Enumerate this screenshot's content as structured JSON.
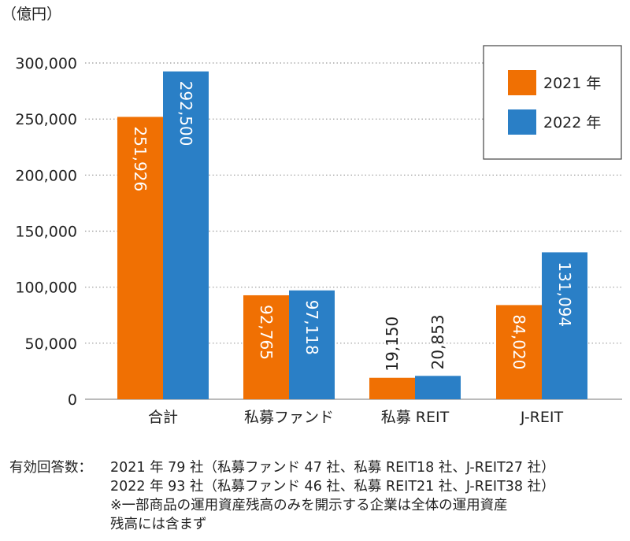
{
  "chart_data": {
    "type": "bar",
    "unit_label": "（億円）",
    "categories": [
      "合計",
      "私募ファンド",
      "私募 REIT",
      "J-REIT"
    ],
    "series": [
      {
        "name": "2021 年",
        "color": "#f07003",
        "values": [
          251926,
          92765,
          19150,
          84020
        ],
        "labels": [
          "251,926",
          "92,765",
          "19,150",
          "84,020"
        ]
      },
      {
        "name": "2022 年",
        "color": "#2a7fc6",
        "values": [
          292500,
          97118,
          20853,
          131094
        ],
        "labels": [
          "292,500",
          "97,118",
          "20,853",
          "131,094"
        ]
      }
    ],
    "ylim": [
      0,
      300000
    ],
    "yticks": [
      0,
      50000,
      100000,
      150000,
      200000,
      250000,
      300000
    ],
    "ytick_labels": [
      "0",
      "50,000",
      "100,000",
      "150,000",
      "200,000",
      "250,000",
      "300,000"
    ],
    "grid": "dotted horizontal",
    "legend_position": "top-right"
  },
  "notes": {
    "heading": "有効回答数：",
    "lines": [
      "2021 年 79 社（私募ファンド 47 社、私募 REIT18 社、J-REIT27 社）",
      "2022 年 93 社（私募ファンド 46 社、私募 REIT21 社、J-REIT38 社）",
      "※一部商品の運用資産残高のみを開示する企業は全体の運用資産",
      "残高には含まず"
    ]
  }
}
